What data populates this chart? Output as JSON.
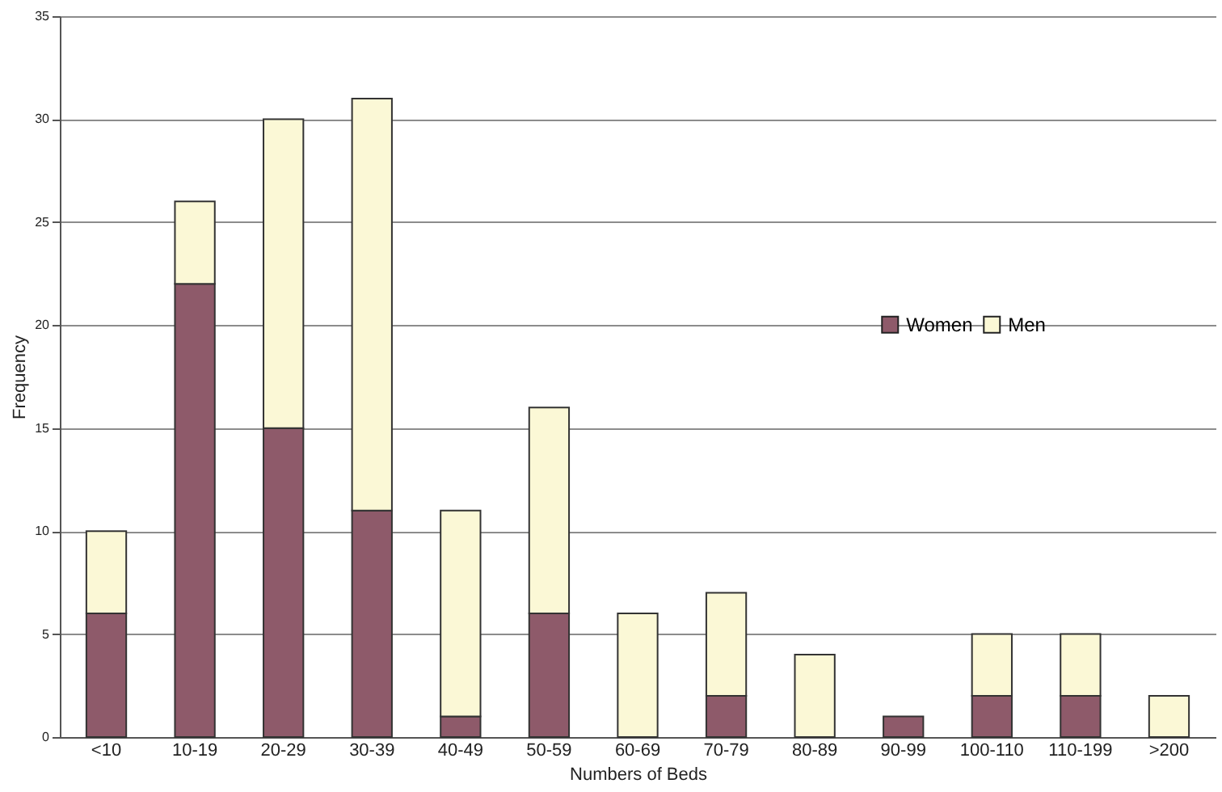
{
  "chart_data": {
    "type": "bar",
    "stacked": true,
    "xlabel": "Numbers of Beds",
    "ylabel": "Frequency",
    "categories": [
      "<10",
      "10-19",
      "20-29",
      "30-39",
      "40-49",
      "50-59",
      "60-69",
      "70-79",
      "80-89",
      "90-99",
      "100-110",
      "110-199",
      ">200"
    ],
    "series": [
      {
        "name": "Women",
        "color": "#8e5a6a",
        "values": [
          6,
          22,
          15,
          11,
          1,
          6,
          0,
          2,
          0,
          1,
          2,
          2,
          0
        ]
      },
      {
        "name": "Men",
        "color": "#fbf8d6",
        "values": [
          4,
          4,
          15,
          20,
          10,
          10,
          6,
          5,
          4,
          0,
          3,
          3,
          2
        ]
      }
    ],
    "ylim": [
      0,
      35
    ],
    "yticks": [
      0,
      5,
      10,
      15,
      20,
      25,
      30,
      35
    ],
    "grid": "y",
    "legend": "right"
  }
}
